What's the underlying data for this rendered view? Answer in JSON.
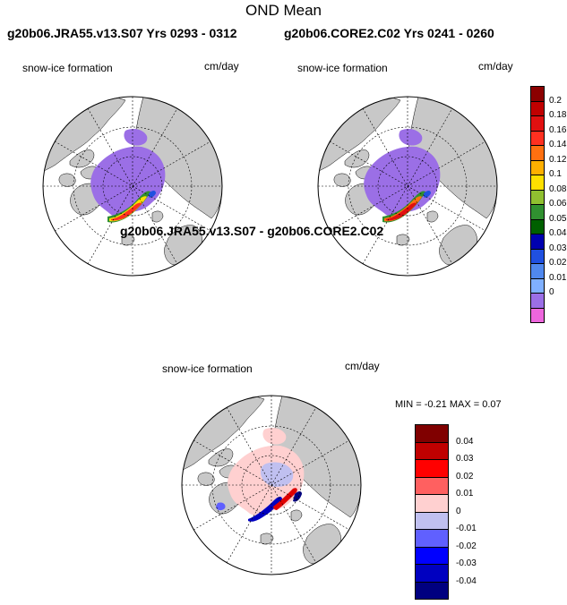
{
  "figure": {
    "title": "OND Mean",
    "panel1_title": "g20b06.JRA55.v13.S07  Yrs 0293 - 0312",
    "panel2_title": "g20b06.CORE2.C02  Yrs 0241 - 0260",
    "diff_title": "g20b06.JRA55.v13.S07 - g20b06.CORE2.C02",
    "field_label": "snow-ice formation",
    "units": "cm/day",
    "minmax": "MIN =  -0.21 MAX =    0.07"
  },
  "colors": {
    "land": "#c8c8c8",
    "ocean": "#ffffff",
    "ice_field": "#9b6fe6"
  },
  "chart_data": [
    {
      "type": "heatmap",
      "name": "JRA55 snow-ice formation",
      "projection": "north-polar-stereographic",
      "units": "cm/day",
      "colorbar": {
        "levels": [
          "0.2",
          "0.18",
          "0.16",
          "0.14",
          "0.12",
          "0.1",
          "0.08",
          "0.06",
          "0.05",
          "0.04",
          "0.03",
          "0.02",
          "0.01",
          "0"
        ],
        "colors": [
          "#8b0000",
          "#c00000",
          "#e01010",
          "#ff3020",
          "#ff7010",
          "#ffb000",
          "#ffe000",
          "#90c030",
          "#309030",
          "#006000",
          "#0000b0",
          "#2050e0",
          "#5088ee",
          "#80b0ff",
          "#9b6fe6",
          "#ee66dd"
        ]
      }
    },
    {
      "type": "heatmap",
      "name": "CORE2 snow-ice formation",
      "projection": "north-polar-stereographic",
      "units": "cm/day"
    },
    {
      "type": "heatmap",
      "name": "Difference JRA55 - CORE2",
      "projection": "north-polar-stereographic",
      "units": "cm/day",
      "min": -0.21,
      "max": 0.07,
      "colorbar": {
        "levels": [
          "0.04",
          "0.03",
          "0.02",
          "0.01",
          "0",
          "-0.01",
          "-0.02",
          "-0.03",
          "-0.04"
        ],
        "colors": [
          "#800000",
          "#c00000",
          "#ff0000",
          "#ff6060",
          "#ffd0d0",
          "#c0c0f0",
          "#6060ff",
          "#0000ff",
          "#0000c0",
          "#000080"
        ]
      }
    }
  ]
}
